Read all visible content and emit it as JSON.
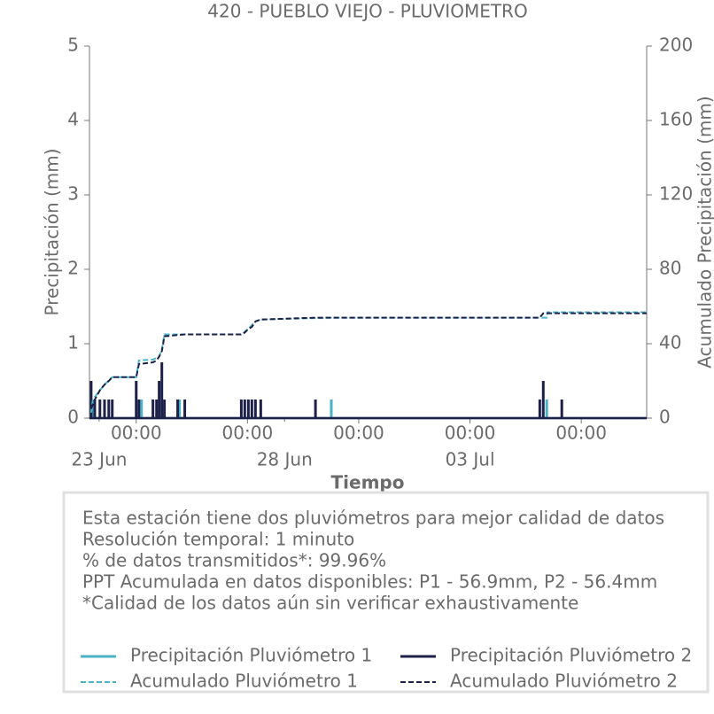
{
  "chart_data": {
    "type": "line",
    "title": "420 - PUEBLO VIEJO - PLUVIOMETRO",
    "x_label": "Tiempo",
    "y_label": "Precipitación (mm)",
    "y2_label": "Acumulado Precipitación (mm)",
    "xlim": [
      "06-22T17:45",
      "07-07T18:20"
    ],
    "xticks": [
      {
        "value": "06-24T00:00",
        "label": "00:00"
      },
      {
        "value": "06-27T00:00",
        "label": "00:00"
      },
      {
        "value": "06-30T00:00",
        "label": "00:00"
      },
      {
        "value": "07-03T00:00",
        "label": "00:00"
      },
      {
        "value": "07-06T00:00",
        "label": "00:00"
      }
    ],
    "xticks_date": [
      {
        "value": "06-23T00:00",
        "label": "23 Jun"
      },
      {
        "value": "06-28T00:00",
        "label": "28 Jun"
      },
      {
        "value": "07-03T00:00",
        "label": "03 Jul"
      }
    ],
    "ylim": [
      0,
      5
    ],
    "yticks": [
      0,
      1,
      2,
      3,
      4,
      5
    ],
    "y2lim": [
      0,
      200
    ],
    "y2ticks": [
      0,
      40,
      80,
      120,
      160,
      200
    ],
    "grid": false,
    "series": [
      {
        "name": "Precipitación Pluviómetro 1",
        "color": "#4bb3c6",
        "style": "spike",
        "axis": "y",
        "x": [
          "06-22T20:00",
          "06-24T03:25",
          "06-25T04:00",
          "06-29T06:15",
          "07-05T01:40"
        ],
        "values": [
          0.25,
          0.25,
          0.25,
          0.25,
          0.25
        ]
      },
      {
        "name": "Precipitación Pluviómetro 2",
        "color": "#1d2149",
        "style": "spike",
        "axis": "y",
        "x": [
          "06-22T18:50",
          "06-22T21:10",
          "06-23T00:30",
          "06-23T03:30",
          "06-23T06:15",
          "06-23T08:30",
          "06-24T00:00",
          "06-24T01:45",
          "06-24T10:50",
          "06-24T13:10",
          "06-24T14:50",
          "06-24T16:35",
          "06-24T18:15",
          "06-25T02:50",
          "06-25T07:25",
          "06-26T20:00",
          "06-26T22:15",
          "06-27T00:35",
          "06-27T02:50",
          "06-27T05:10",
          "06-27T08:35",
          "06-28T20:00",
          "07-04T21:10",
          "07-04T23:25",
          "07-05T11:25"
        ],
        "values": [
          0.5,
          0.25,
          0.25,
          0.25,
          0.25,
          0.25,
          0.5,
          0.25,
          0.25,
          0.25,
          0.5,
          0.75,
          0.25,
          0.25,
          0.25,
          0.25,
          0.25,
          0.25,
          0.25,
          0.25,
          0.25,
          0.25,
          0.25,
          0.5,
          0.25
        ]
      },
      {
        "name": "Acumulado Pluviómetro 1",
        "color": "#4bb3c6",
        "style": "dashed",
        "axis": "y2",
        "x": [
          "06-22T18:50",
          "06-22T20:00",
          "06-23T00:30",
          "06-23T03:30",
          "06-23T08:30",
          "06-24T00:00",
          "06-24T01:45",
          "06-24T10:50",
          "06-24T14:50",
          "06-24T16:35",
          "06-24T18:15",
          "06-26T20:00",
          "06-27T00:35",
          "06-27T05:10",
          "06-27T08:35",
          "06-29T06:15",
          "07-05T01:40",
          "07-05T02:00",
          "07-07T18:20"
        ],
        "values": [
          3,
          10,
          15,
          18,
          22,
          22,
          31,
          31.5,
          33,
          37,
          45,
          45,
          48,
          52,
          53,
          54,
          54,
          56.9,
          56.9
        ]
      },
      {
        "name": "Acumulado Pluviómetro 2",
        "color": "#1d2149",
        "style": "dashed",
        "axis": "y2",
        "x": [
          "06-22T18:50",
          "06-22T21:10",
          "06-23T00:30",
          "06-23T03:30",
          "06-23T06:15",
          "06-23T08:30",
          "06-24T00:00",
          "06-24T01:45",
          "06-24T10:50",
          "06-24T13:10",
          "06-24T14:50",
          "06-24T16:35",
          "06-24T18:15",
          "06-25T07:25",
          "06-26T20:00",
          "06-26T22:15",
          "06-27T00:35",
          "06-27T02:50",
          "06-27T05:10",
          "06-27T08:35",
          "06-28T20:00",
          "07-04T21:10",
          "07-04T23:25",
          "07-07T18:20"
        ],
        "values": [
          5,
          10,
          15,
          18,
          20,
          22,
          22,
          29,
          30,
          31,
          33,
          36,
          44,
          45,
          45,
          46,
          48,
          49,
          52,
          53,
          54,
          54,
          56.4,
          56.4
        ]
      }
    ],
    "notes": [
      "Esta estación tiene dos pluviómetros para mejor calidad de datos",
      "Resolución temporal: 1 minuto",
      "% de datos transmitidos*: 99.96%",
      "PPT Acumulada en datos disponibles: P1 - 56.9mm, P2 - 56.4mm",
      "*Calidad de los datos aún sin verificar exhaustivamente"
    ],
    "legend_position": "bottom"
  }
}
